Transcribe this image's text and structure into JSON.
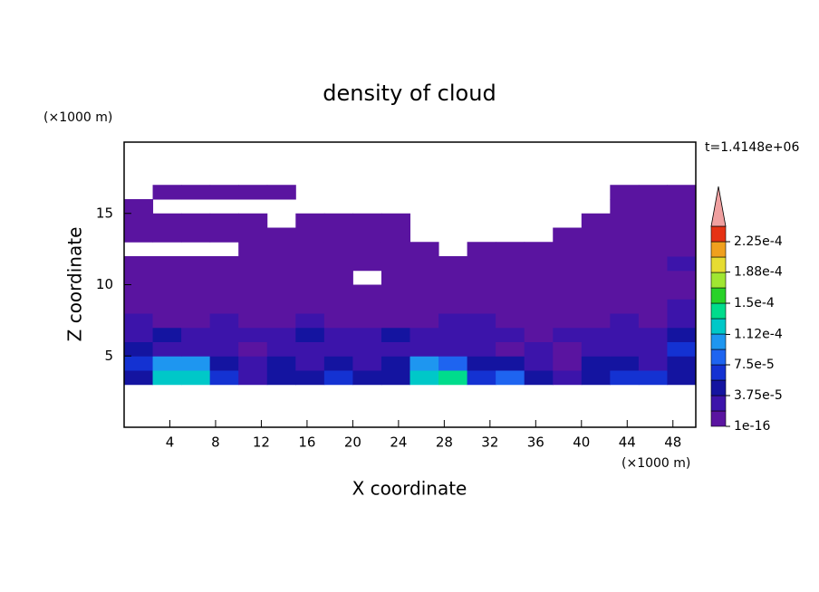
{
  "chart_data": {
    "type": "contour",
    "title": "density of cloud",
    "xlabel": "X coordinate",
    "ylabel": "Z coordinate",
    "xunit": "(×1000 m)",
    "yunit": "(×1000 m)",
    "annotation": "t=1.4148e+06",
    "xlim": [
      0,
      50
    ],
    "ylim": [
      0,
      20
    ],
    "xticks": [
      4,
      8,
      12,
      16,
      20,
      24,
      28,
      32,
      36,
      40,
      44,
      48
    ],
    "yticks": [
      5,
      10,
      15
    ],
    "x": [
      1.25,
      3.75,
      6.25,
      8.75,
      11.25,
      13.75,
      16.25,
      18.75,
      21.25,
      23.75,
      26.25,
      28.75,
      31.25,
      33.75,
      36.25,
      38.75,
      41.25,
      43.75,
      46.25,
      48.75
    ],
    "y": [
      3.5,
      4.5,
      5.5,
      6.5,
      7.5,
      8.5,
      9.5,
      10.5,
      11.5,
      12.5,
      13.5,
      14.5,
      15.5,
      16.5
    ],
    "z": [
      [
        4e-05,
        0.00012,
        0.00012,
        6e-05,
        2.5e-05,
        4e-05,
        4e-05,
        6e-05,
        4e-05,
        4e-05,
        0.00012,
        0.00014,
        6e-05,
        8e-05,
        4e-05,
        2.5e-05,
        4e-05,
        6e-05,
        6e-05,
        4e-05
      ],
      [
        6e-05,
        0.0001,
        0.0001,
        4e-05,
        2.5e-05,
        4e-05,
        2.5e-05,
        4e-05,
        2.5e-05,
        4e-05,
        0.0001,
        8e-05,
        4e-05,
        4e-05,
        2.5e-05,
        1e-05,
        4e-05,
        4e-05,
        2.5e-05,
        4e-05
      ],
      [
        4e-05,
        2.5e-05,
        2.5e-05,
        2.5e-05,
        1e-05,
        2.5e-05,
        2.5e-05,
        2.5e-05,
        2.5e-05,
        2.5e-05,
        2.5e-05,
        2.5e-05,
        2.5e-05,
        1e-05,
        2.5e-05,
        1e-05,
        2.5e-05,
        2.5e-05,
        2.5e-05,
        6e-05
      ],
      [
        2.5e-05,
        4e-05,
        2.5e-05,
        2.5e-05,
        2.5e-05,
        2.5e-05,
        4e-05,
        2.5e-05,
        2.5e-05,
        4e-05,
        2.5e-05,
        2.5e-05,
        2.5e-05,
        2.5e-05,
        1e-05,
        2.5e-05,
        2.5e-05,
        2.5e-05,
        2.5e-05,
        4e-05
      ],
      [
        2.5e-05,
        1e-05,
        1e-05,
        2.5e-05,
        1e-05,
        1e-05,
        2.5e-05,
        1e-05,
        1e-05,
        1e-05,
        1e-05,
        2.5e-05,
        2.5e-05,
        1e-05,
        1e-05,
        1e-05,
        1e-05,
        2.5e-05,
        1e-05,
        2.5e-05
      ],
      [
        1e-05,
        1e-05,
        1e-05,
        1e-05,
        1e-05,
        1e-05,
        1e-05,
        1e-05,
        1e-05,
        1e-05,
        1e-05,
        1e-05,
        1e-05,
        1e-05,
        1e-05,
        1e-05,
        1e-05,
        1e-05,
        1e-05,
        2.5e-05
      ],
      [
        1e-05,
        1e-05,
        1e-05,
        1e-05,
        1e-05,
        1e-05,
        1e-05,
        1e-05,
        1e-05,
        1e-05,
        1e-05,
        1e-05,
        1e-05,
        1e-05,
        1e-05,
        1e-05,
        1e-05,
        1e-05,
        1e-05,
        1e-05
      ],
      [
        1e-05,
        1e-05,
        1e-05,
        1e-05,
        1e-05,
        1e-05,
        1e-05,
        1e-05,
        null,
        1e-05,
        1e-05,
        1e-05,
        1e-05,
        1e-05,
        1e-05,
        1e-05,
        1e-05,
        1e-05,
        1e-05,
        1e-05
      ],
      [
        1e-05,
        1e-05,
        1e-05,
        1e-05,
        1e-05,
        1e-05,
        1e-05,
        1e-05,
        1e-05,
        1e-05,
        1e-05,
        1e-05,
        1e-05,
        1e-05,
        1e-05,
        1e-05,
        1e-05,
        1e-05,
        1e-05,
        2.5e-05
      ],
      [
        null,
        null,
        null,
        null,
        1e-05,
        1e-05,
        1e-05,
        1e-05,
        1e-05,
        1e-05,
        1e-05,
        null,
        1e-05,
        1e-05,
        1e-05,
        1e-05,
        1e-05,
        1e-05,
        1e-05,
        1e-05
      ],
      [
        1e-05,
        1e-05,
        1e-05,
        1e-05,
        1e-05,
        1e-05,
        1e-05,
        1e-05,
        1e-05,
        1e-05,
        null,
        null,
        null,
        null,
        null,
        1e-05,
        1e-05,
        1e-05,
        1e-05,
        1e-05
      ],
      [
        1e-05,
        1e-05,
        1e-05,
        1e-05,
        1e-05,
        null,
        1e-05,
        1e-05,
        1e-05,
        1e-05,
        null,
        null,
        null,
        null,
        null,
        null,
        1e-05,
        1e-05,
        1e-05,
        1e-05
      ],
      [
        1e-05,
        null,
        null,
        null,
        null,
        null,
        null,
        null,
        null,
        null,
        null,
        null,
        null,
        null,
        null,
        null,
        null,
        1e-05,
        1e-05,
        1e-05
      ],
      [
        null,
        1e-05,
        1e-05,
        1e-05,
        1e-05,
        1e-05,
        null,
        null,
        null,
        null,
        null,
        null,
        null,
        null,
        null,
        null,
        null,
        1e-05,
        1e-05,
        1e-05
      ]
    ],
    "levels": [
      1e-16,
      1.875e-05,
      3.75e-05,
      5.625e-05,
      7.5e-05,
      9.375e-05,
      0.0001125,
      0.00013125,
      0.00015,
      0.00016875,
      0.0001875,
      0.00020625,
      0.000225
    ],
    "colors": [
      "#5a14a0",
      "#3c14aa",
      "#1414a0",
      "#1432d2",
      "#1e64f0",
      "#1e96f0",
      "#00c8c8",
      "#00dc8c",
      "#28d228",
      "#a0e632",
      "#e6dc32",
      "#f0a01e",
      "#e63214"
    ],
    "over_color": "#f0a0a0",
    "colorbar_lim": [
      1e-16,
      0.00024375
    ],
    "colorbar_ticks": [
      1e-16,
      {
        "value": 3.75e-05,
        "label": "3.75e-5"
      },
      {
        "value": 7.5e-05,
        "label": "7.5e-5"
      },
      {
        "value": 0.000112,
        "label": "1.12e-4"
      },
      {
        "value": 0.00015,
        "label": "1.5e-4"
      },
      {
        "value": 0.000188,
        "label": "1.88e-4"
      },
      {
        "value": 0.000225,
        "label": "2.25e-4"
      }
    ]
  }
}
